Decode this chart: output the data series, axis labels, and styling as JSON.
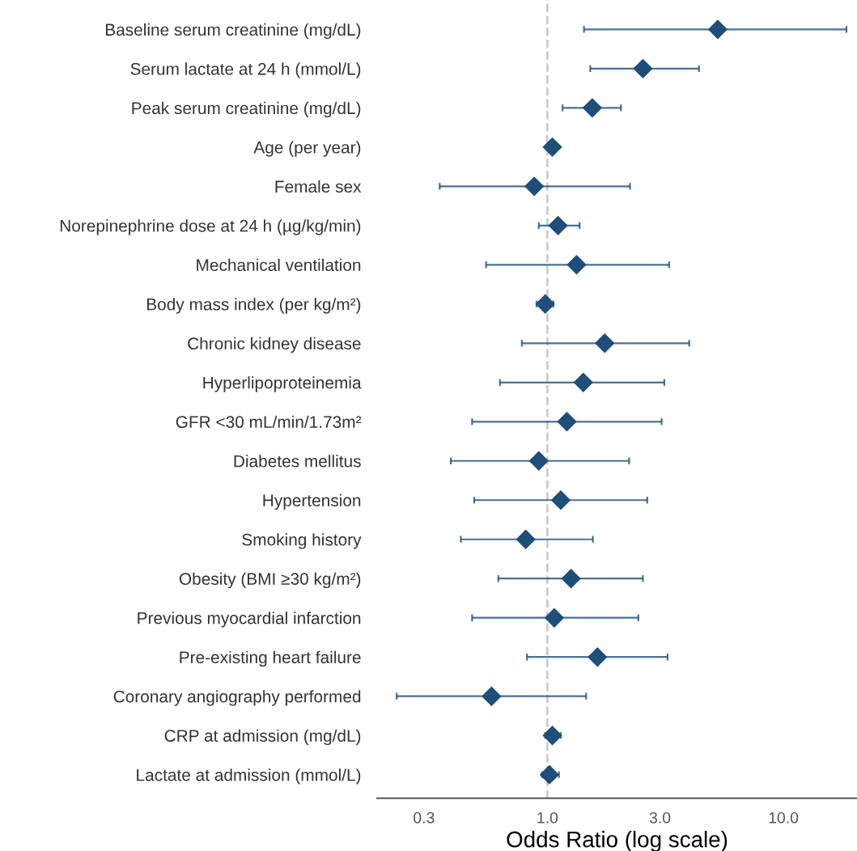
{
  "chart_data": {
    "type": "scatter",
    "orientation": "horizontal",
    "xlabel": "Odds Ratio (log scale)",
    "log": "x",
    "grid": false,
    "marker": "diamond",
    "categories": [
      "Baseline serum creatinine (mg/dL)",
      "Serum lactate at 24 h (mmol/L)",
      "Peak serum creatinine (mg/dL)",
      "Age (per year)",
      "Female sex",
      "Norepinephrine dose at 24 h (µg/kg/min)",
      "Mechanical ventilation",
      "Body mass index (per kg/m²)",
      "Chronic kidney disease",
      "Hyperlipoproteinemia",
      "GFR <30 mL/min/1.73m²",
      "Diabetes mellitus",
      "Hypertension",
      "Smoking history",
      "Obesity (BMI ≥30 kg/m²)",
      "Previous myocardial infarction",
      "Pre-existing heart failure",
      "Coronary angiography performed",
      "CRP at admission (mg/dL)",
      "Lactate at admission (mmol/L)"
    ],
    "series": [
      {
        "color": "#1f4e79",
        "values": [
          5.27,
          2.54,
          1.55,
          1.05,
          0.88,
          1.11,
          1.33,
          0.98,
          1.75,
          1.42,
          1.21,
          0.92,
          1.14,
          0.81,
          1.26,
          1.07,
          1.63,
          0.58,
          1.05,
          1.02
        ],
        "errors": [
          [
            1.43,
            18.5
          ],
          [
            1.52,
            4.39
          ],
          [
            1.16,
            2.05
          ],
          null,
          [
            0.35,
            2.24
          ],
          [
            0.92,
            1.37
          ],
          [
            0.55,
            3.28
          ],
          [
            0.9,
            1.06
          ],
          [
            0.78,
            3.99
          ],
          [
            0.63,
            3.13
          ],
          [
            0.48,
            3.05
          ],
          [
            0.39,
            2.22
          ],
          [
            0.49,
            2.65
          ],
          [
            0.43,
            1.56
          ],
          [
            0.62,
            2.54
          ],
          [
            0.48,
            2.43
          ],
          [
            0.82,
            3.23
          ],
          [
            0.23,
            1.46
          ],
          [
            0.98,
            1.14
          ],
          [
            0.95,
            1.12
          ]
        ]
      }
    ],
    "xlim": [
      0.19,
      20.5
    ],
    "xticks": [
      {
        "value": 0.3,
        "label": "0.3"
      },
      {
        "value": 1,
        "label": "1.0"
      },
      {
        "value": 3,
        "label": "3.0"
      },
      {
        "value": 10,
        "label": "10.0"
      }
    ],
    "ref_lines": [
      {
        "axis": "x",
        "value": 1,
        "color": "#cccccc",
        "line_style": "dashed"
      }
    ]
  }
}
